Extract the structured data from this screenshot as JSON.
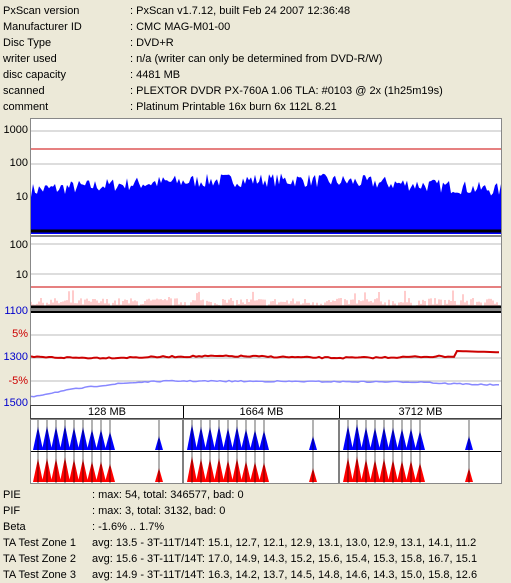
{
  "info": [
    {
      "key": "PxScan version",
      "value": ": PxScan v1.7.12, built Feb 24 2007 12:36:48"
    },
    {
      "key": "Manufacturer ID",
      "value": ": CMC MAG-M01-00"
    },
    {
      "key": "Disc Type",
      "value": ": DVD+R"
    },
    {
      "key": "writer used",
      "value": ": n/a (writer can only be determined from DVD-R/W)"
    },
    {
      "key": "disc capacity",
      "value": ": 4481 MB"
    },
    {
      "key": "scanned",
      "value": ": PLEXTOR DVDR PX-760A 1.06 TLA: #0103 @ 2x (1h25m19s)"
    },
    {
      "key": "comment",
      "value": ": Platinum Printable 16x burn 6x 112L 8.21"
    }
  ],
  "pie_axis": [
    "1000",
    "100",
    "10"
  ],
  "pif_axis": [
    "100",
    "10"
  ],
  "jitter_axis": [
    {
      "label": "1100",
      "color": "#0000cc"
    },
    {
      "label": "5%",
      "color": "#cc0000"
    },
    {
      "label": "1300",
      "color": "#0000cc"
    },
    {
      "label": "-5%",
      "color": "#cc0000"
    },
    {
      "label": "1500",
      "color": "#0000cc"
    }
  ],
  "zones": [
    "128 MB",
    "1664 MB",
    "3712 MB"
  ],
  "stats": [
    {
      "key": "PIE",
      "value": ": max: 54, total: 346577, bad: 0"
    },
    {
      "key": "PIF",
      "value": ": max: 3, total: 3132, bad: 0"
    },
    {
      "key": "Beta",
      "value": ": -1.6% .. 1.7%"
    },
    {
      "key": "TA Test Zone 1",
      "value": "avg: 13.5 - 3T-11T/14T: 15.1, 12.7, 12.1, 12.9, 13.1, 13.0, 12.9, 13.1, 14.1, 11.2"
    },
    {
      "key": "TA Test Zone 2",
      "value": "avg: 15.6 - 3T-11T/14T: 17.0, 14.9, 14.3, 15.2, 15.6, 15.4, 15.3, 15.8, 16.7, 15.1"
    },
    {
      "key": "TA Test Zone 3",
      "value": "avg: 14.9 - 3T-11T/14T: 16.3, 14.2, 13.7, 14.5, 14.8, 14.6, 14.3, 15.0, 15.8, 12.6"
    }
  ],
  "colors": {
    "pie": "#0000ff",
    "pif": "#ff9999",
    "limit": "#cc0000",
    "jitter": "#8888ff",
    "beta": "#cc0000",
    "land": "#0000ff",
    "pit": "#ff0000"
  }
}
